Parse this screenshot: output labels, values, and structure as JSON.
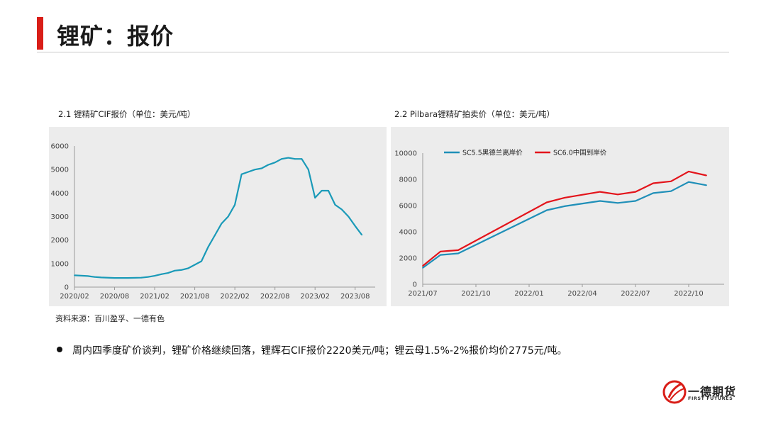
{
  "page": {
    "title": "锂矿：报价"
  },
  "charts_meta": {
    "left_caption": "2.1 锂精矿CIF报价（单位：美元/吨）",
    "right_caption": "2.2 Pilbara锂精矿拍卖价（单位：美元/吨）"
  },
  "source": "资料来源：百川盈孚、一德有色",
  "bullet": "周内四季度矿价谈判，锂矿价格继续回落，锂辉石CIF报价2220美元/吨；锂云母1.5%-2%报价均价2775元/吨。",
  "logo": {
    "cn": "一德期货",
    "en": "FIRST FUTURES",
    "icon": "first-futures-logo-icon"
  },
  "colors": {
    "accent": "#d91e18",
    "blue_series": "#1f8fb8",
    "cif_series": "#1a9ab8",
    "red_series": "#e3141b",
    "panel_bg": "#ececec"
  },
  "chart_data": [
    {
      "type": "line",
      "title": "2.1 锂精矿CIF报价（单位：美元/吨）",
      "xlabel": "",
      "ylabel": "",
      "xlim": [
        "2020/02",
        "2023/11"
      ],
      "ylim": [
        0,
        6000
      ],
      "yticks": [
        0,
        1000,
        2000,
        3000,
        4000,
        5000,
        6000
      ],
      "xticks": [
        "2020/02",
        "2020/08",
        "2021/02",
        "2021/08",
        "2022/02",
        "2022/08",
        "2023/02",
        "2023/08"
      ],
      "grid": false,
      "series": [
        {
          "name": "",
          "color": "#1a9ab8",
          "points": [
            [
              "2020/02",
              500
            ],
            [
              "2020/04",
              470
            ],
            [
              "2020/05",
              430
            ],
            [
              "2020/06",
              410
            ],
            [
              "2020/08",
              390
            ],
            [
              "2020/10",
              390
            ],
            [
              "2020/12",
              400
            ],
            [
              "2021/01",
              430
            ],
            [
              "2021/02",
              480
            ],
            [
              "2021/03",
              550
            ],
            [
              "2021/04",
              600
            ],
            [
              "2021/05",
              700
            ],
            [
              "2021/06",
              730
            ],
            [
              "2021/07",
              800
            ],
            [
              "2021/08",
              950
            ],
            [
              "2021/09",
              1100
            ],
            [
              "2021/10",
              1700
            ],
            [
              "2021/11",
              2200
            ],
            [
              "2021/12",
              2700
            ],
            [
              "2022/01",
              3000
            ],
            [
              "2022/02",
              3500
            ],
            [
              "2022/03",
              4800
            ],
            [
              "2022/04",
              4900
            ],
            [
              "2022/05",
              5000
            ],
            [
              "2022/06",
              5050
            ],
            [
              "2022/07",
              5200
            ],
            [
              "2022/08",
              5300
            ],
            [
              "2022/09",
              5450
            ],
            [
              "2022/10",
              5500
            ],
            [
              "2022/11",
              5450
            ],
            [
              "2022/12",
              5450
            ],
            [
              "2023/01",
              5000
            ],
            [
              "2023/02",
              3800
            ],
            [
              "2023/03",
              4100
            ],
            [
              "2023/04",
              4100
            ],
            [
              "2023/05",
              3500
            ],
            [
              "2023/06",
              3300
            ],
            [
              "2023/07",
              3000
            ],
            [
              "2023/08",
              2600
            ],
            [
              "2023/09",
              2220
            ]
          ]
        }
      ]
    },
    {
      "type": "line",
      "title": "2.2 Pilbara锂精矿拍卖价（单位：美元/吨）",
      "xlabel": "",
      "ylabel": "",
      "xlim": [
        "2021/07",
        "2022/12"
      ],
      "ylim": [
        0,
        10000
      ],
      "yticks": [
        0,
        2000,
        4000,
        6000,
        8000,
        10000
      ],
      "xticks": [
        "2021/07",
        "2021/10",
        "2022/01",
        "2022/04",
        "2022/07",
        "2022/10"
      ],
      "grid": false,
      "legend_position": "top-left",
      "series": [
        {
          "name": "SC5.5黑德兰离岸价",
          "color": "#1f8fb8",
          "points": [
            [
              "2021/07",
              1250
            ],
            [
              "2021/08",
              2240
            ],
            [
              "2021/09",
              2350
            ],
            [
              "2022/02",
              5650
            ],
            [
              "2022/03",
              5950
            ],
            [
              "2022/05",
              6350
            ],
            [
              "2022/06",
              6200
            ],
            [
              "2022/07",
              6350
            ],
            [
              "2022/08",
              6950
            ],
            [
              "2022/09",
              7100
            ],
            [
              "2022/10",
              7800
            ],
            [
              "2022/11",
              7550
            ]
          ]
        },
        {
          "name": "SC6.0中国到岸价",
          "color": "#e3141b",
          "points": [
            [
              "2021/07",
              1400
            ],
            [
              "2021/08",
              2500
            ],
            [
              "2021/09",
              2600
            ],
            [
              "2022/02",
              6250
            ],
            [
              "2022/03",
              6600
            ],
            [
              "2022/05",
              7050
            ],
            [
              "2022/06",
              6850
            ],
            [
              "2022/07",
              7050
            ],
            [
              "2022/08",
              7700
            ],
            [
              "2022/09",
              7850
            ],
            [
              "2022/10",
              8600
            ],
            [
              "2022/11",
              8300
            ]
          ]
        }
      ]
    }
  ]
}
